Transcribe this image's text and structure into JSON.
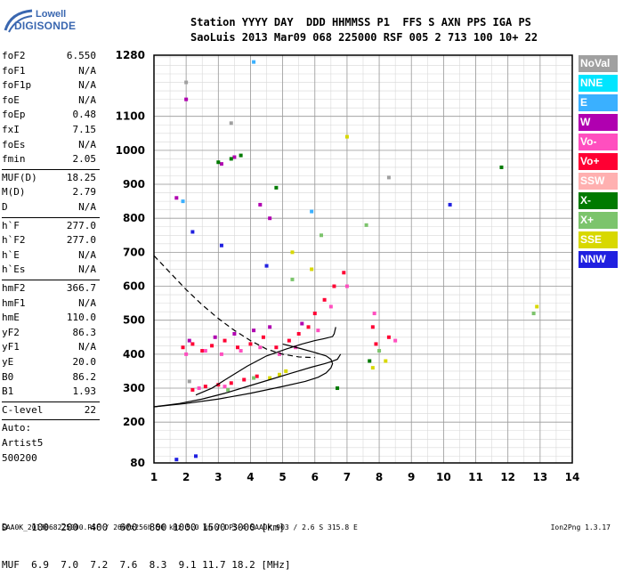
{
  "logo": {
    "line1": "Lowell",
    "line2": "DIGISONDE"
  },
  "header": {
    "row1": "Station YYYY DAY  DDD HHMMSS P1  FFS S AXN PPS IGA PS",
    "row2": "SaoLuis 2013 Mar09 068 225000 RSF 005 2 713 100 10+ 22"
  },
  "params": [
    {
      "label": "foF2",
      "value": "6.550"
    },
    {
      "label": "foF1",
      "value": "N/A"
    },
    {
      "label": "foF1p",
      "value": "N/A"
    },
    {
      "label": "foE",
      "value": "N/A"
    },
    {
      "label": "foEp",
      "value": "0.48"
    },
    {
      "label": "fxI",
      "value": "7.15"
    },
    {
      "label": "foEs",
      "value": "N/A"
    },
    {
      "label": "fmin",
      "value": "2.05"
    },
    {
      "label": "MUF(D)",
      "value": "18.25",
      "sep": true
    },
    {
      "label": "M(D)",
      "value": "2.79"
    },
    {
      "label": "D",
      "value": "N/A"
    },
    {
      "label": "h`F",
      "value": "277.0",
      "sep": true
    },
    {
      "label": "h`F2",
      "value": "277.0"
    },
    {
      "label": "h`E",
      "value": "N/A"
    },
    {
      "label": "h`Es",
      "value": "N/A"
    },
    {
      "label": "hmF2",
      "value": "366.7",
      "sep": true
    },
    {
      "label": "hmF1",
      "value": "N/A"
    },
    {
      "label": "hmE",
      "value": "110.0"
    },
    {
      "label": "yF2",
      "value": "86.3"
    },
    {
      "label": "yF1",
      "value": "N/A"
    },
    {
      "label": "yE",
      "value": "20.0"
    },
    {
      "label": "B0",
      "value": "86.2"
    },
    {
      "label": "B1",
      "value": "1.93"
    },
    {
      "label": "C-level",
      "value": "22",
      "sep": true
    },
    {
      "label": "Auto:",
      "value": "",
      "sep": true
    },
    {
      "label": "Artist5",
      "value": ""
    },
    {
      "label": "500200",
      "value": ""
    }
  ],
  "legend": [
    {
      "label": "NoVal",
      "color": "#a0a0a0"
    },
    {
      "label": "NNE",
      "color": "#00e5ff"
    },
    {
      "label": "E",
      "color": "#3ab0ff"
    },
    {
      "label": "W",
      "color": "#b000b0"
    },
    {
      "label": "Vo-",
      "color": "#ff4fbf"
    },
    {
      "label": "Vo+",
      "color": "#ff0033"
    },
    {
      "label": "SSW",
      "color": "#ffb0b0"
    },
    {
      "label": "X-",
      "color": "#007a00"
    },
    {
      "label": "X+",
      "color": "#7cc46c"
    },
    {
      "label": "SSE",
      "color": "#d8d800"
    },
    {
      "label": "NNW",
      "color": "#2020e0"
    }
  ],
  "footer": {
    "d_line": "D    100  200  400  600  800 1000 1500 3000 [km]",
    "muf_line": "MUF  6.9  7.0  7.2  7.6  8.3  9.1 11.7 18.2 [MHz]",
    "info": "SAA0K_2013068225000.RSF / 260fx256h 50 kHz 5.0 km / DPS-4 SAA0K 903 / 2.6 S 315.8 E",
    "version": "Ion2Png 1.3.17"
  },
  "chart_data": {
    "type": "scatter",
    "xlabel": "",
    "ylabel": "",
    "xlim": [
      1,
      14
    ],
    "ylim": [
      80,
      1280
    ],
    "x_ticks": [
      1,
      2,
      3,
      4,
      5,
      6,
      7,
      8,
      9,
      10,
      11,
      12,
      13,
      14
    ],
    "y_ticks": [
      80,
      200,
      300,
      400,
      500,
      600,
      700,
      800,
      900,
      1000,
      1100,
      1280
    ],
    "grid": true,
    "series": [
      {
        "name": "Vo+",
        "color": "#ff0033",
        "points": [
          [
            1.9,
            420
          ],
          [
            2.2,
            430
          ],
          [
            2.5,
            410
          ],
          [
            2.8,
            425
          ],
          [
            3.2,
            440
          ],
          [
            3.6,
            420
          ],
          [
            4.0,
            430
          ],
          [
            4.4,
            450
          ],
          [
            4.8,
            420
          ],
          [
            5.2,
            440
          ],
          [
            5.5,
            460
          ],
          [
            5.8,
            480
          ],
          [
            6.0,
            520
          ],
          [
            6.3,
            560
          ],
          [
            6.6,
            600
          ],
          [
            6.9,
            640
          ],
          [
            7.8,
            480
          ],
          [
            7.9,
            430
          ],
          [
            8.3,
            450
          ],
          [
            2.2,
            295
          ],
          [
            2.6,
            305
          ],
          [
            3.0,
            310
          ],
          [
            3.4,
            315
          ],
          [
            3.8,
            325
          ],
          [
            4.2,
            335
          ]
        ]
      },
      {
        "name": "Vo-",
        "color": "#ff4fbf",
        "points": [
          [
            2.0,
            400
          ],
          [
            2.6,
            410
          ],
          [
            3.1,
            400
          ],
          [
            3.7,
            410
          ],
          [
            4.3,
            420
          ],
          [
            4.9,
            400
          ],
          [
            5.4,
            420
          ],
          [
            6.1,
            470
          ],
          [
            6.5,
            540
          ],
          [
            7.0,
            600
          ],
          [
            7.85,
            520
          ],
          [
            8.5,
            440
          ],
          [
            2.4,
            300
          ],
          [
            3.2,
            305
          ]
        ]
      },
      {
        "name": "W",
        "color": "#b000b0",
        "points": [
          [
            2.1,
            440
          ],
          [
            2.9,
            450
          ],
          [
            3.5,
            460
          ],
          [
            4.1,
            470
          ],
          [
            4.6,
            480
          ],
          [
            5.6,
            490
          ],
          [
            3.1,
            960
          ],
          [
            3.5,
            980
          ],
          [
            4.3,
            840
          ],
          [
            4.6,
            800
          ],
          [
            1.7,
            860
          ],
          [
            2.0,
            1150
          ]
        ]
      },
      {
        "name": "X-",
        "color": "#007a00",
        "points": [
          [
            3.0,
            965
          ],
          [
            3.4,
            975
          ],
          [
            3.7,
            985
          ],
          [
            4.8,
            890
          ],
          [
            6.7,
            300
          ],
          [
            7.7,
            380
          ],
          [
            11.8,
            950
          ]
        ]
      },
      {
        "name": "X+",
        "color": "#7cc46c",
        "points": [
          [
            5.3,
            620
          ],
          [
            6.2,
            750
          ],
          [
            7.6,
            780
          ],
          [
            8.0,
            410
          ],
          [
            3.3,
            295
          ],
          [
            4.1,
            330
          ],
          [
            12.8,
            520
          ]
        ]
      },
      {
        "name": "SSE",
        "color": "#d8d800",
        "points": [
          [
            4.6,
            330
          ],
          [
            4.9,
            340
          ],
          [
            5.1,
            350
          ],
          [
            5.9,
            650
          ],
          [
            5.3,
            700
          ],
          [
            7.0,
            1040
          ],
          [
            7.8,
            360
          ],
          [
            8.2,
            380
          ],
          [
            12.9,
            540
          ]
        ]
      },
      {
        "name": "NNW",
        "color": "#2020e0",
        "points": [
          [
            2.2,
            760
          ],
          [
            3.1,
            720
          ],
          [
            4.5,
            660
          ],
          [
            10.2,
            840
          ],
          [
            1.7,
            90
          ],
          [
            2.3,
            100
          ]
        ]
      },
      {
        "name": "E",
        "color": "#3ab0ff",
        "points": [
          [
            1.9,
            850
          ],
          [
            4.1,
            1260
          ],
          [
            5.9,
            820
          ]
        ]
      },
      {
        "name": "NoVal",
        "color": "#a0a0a0",
        "points": [
          [
            2.0,
            1200
          ],
          [
            3.4,
            1080
          ],
          [
            8.3,
            920
          ],
          [
            2.1,
            320
          ]
        ]
      }
    ],
    "traces": [
      {
        "style": "solid",
        "points": [
          [
            1,
            245
          ],
          [
            1.8,
            255
          ],
          [
            2.5,
            268
          ],
          [
            3.2,
            285
          ],
          [
            3.9,
            305
          ],
          [
            4.6,
            325
          ],
          [
            5.3,
            345
          ],
          [
            5.9,
            362
          ],
          [
            6.3,
            372
          ],
          [
            6.5,
            378
          ],
          [
            6.7,
            385
          ],
          [
            6.8,
            400
          ]
        ]
      },
      {
        "style": "solid",
        "points": [
          [
            2.3,
            280
          ],
          [
            2.8,
            300
          ],
          [
            3.3,
            330
          ],
          [
            3.9,
            365
          ],
          [
            4.5,
            395
          ],
          [
            5.1,
            415
          ],
          [
            5.6,
            430
          ],
          [
            6.0,
            440
          ],
          [
            6.3,
            446
          ],
          [
            6.55,
            452
          ],
          [
            6.6,
            460
          ],
          [
            6.65,
            480
          ]
        ]
      },
      {
        "style": "solid",
        "points": [
          [
            1,
            245
          ],
          [
            2,
            255
          ],
          [
            3,
            268
          ],
          [
            4,
            285
          ],
          [
            5,
            305
          ],
          [
            5.7,
            320
          ],
          [
            6.1,
            332
          ],
          [
            6.35,
            345
          ],
          [
            6.5,
            360
          ],
          [
            6.55,
            372
          ],
          [
            6.5,
            385
          ],
          [
            6.35,
            395
          ],
          [
            6.0,
            405
          ],
          [
            5.5,
            418
          ],
          [
            5.0,
            430
          ]
        ]
      },
      {
        "style": "dashed",
        "points": [
          [
            1,
            690
          ],
          [
            1.5,
            640
          ],
          [
            2,
            590
          ],
          [
            2.5,
            545
          ],
          [
            3,
            505
          ],
          [
            3.5,
            470
          ],
          [
            4,
            440
          ],
          [
            4.5,
            415
          ],
          [
            5,
            400
          ],
          [
            5.5,
            392
          ],
          [
            6,
            390
          ]
        ]
      }
    ]
  }
}
